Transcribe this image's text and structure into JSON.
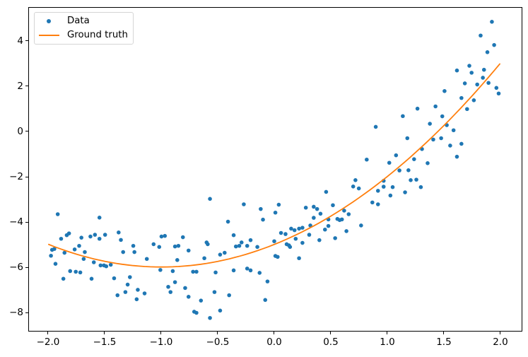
{
  "figure": {
    "background": "#ffffff"
  },
  "chart_data": {
    "type": "scatter",
    "title": "",
    "xlabel": "",
    "ylabel": "",
    "grid": false,
    "axes_color": "#000000",
    "xlim": [
      -2.175,
      2.194
    ],
    "ylim": [
      -8.83,
      5.49
    ],
    "x_ticks": [
      -2.0,
      -1.5,
      -1.0,
      -0.5,
      0.0,
      0.5,
      1.0,
      1.5,
      2.0
    ],
    "x_tick_labels": [
      "−2.0",
      "−1.5",
      "−1.0",
      "−0.5",
      "0.0",
      "0.5",
      "1.0",
      "1.5",
      "2.0"
    ],
    "y_ticks": [
      -8,
      -6,
      -4,
      -2,
      0,
      2,
      4
    ],
    "y_tick_labels": [
      "−8",
      "−6",
      "−4",
      "−2",
      "0",
      "2",
      "4"
    ],
    "legend": {
      "position": "upper left",
      "entries": [
        {
          "label": "Data",
          "type": "marker",
          "color": "#1f77b4"
        },
        {
          "label": "Ground truth",
          "type": "line",
          "color": "#ff7f0e"
        }
      ]
    },
    "series": [
      {
        "name": "Data",
        "type": "scatter",
        "color": "#1f77b4",
        "marker": "dot",
        "marker_radius": 2.8,
        "points": [
          [
            -1.92,
            -3.66
          ],
          [
            -1.55,
            -3.81
          ],
          [
            -1.89,
            -4.75
          ],
          [
            -1.84,
            -4.59
          ],
          [
            -1.82,
            -4.51
          ],
          [
            -1.71,
            -4.7
          ],
          [
            -1.63,
            -4.65
          ],
          [
            -1.59,
            -4.57
          ],
          [
            -1.55,
            -4.75
          ],
          [
            -1.5,
            -4.57
          ],
          [
            -1.38,
            -4.47
          ],
          [
            -1.36,
            -4.8
          ],
          [
            -1.97,
            -5.24
          ],
          [
            -1.95,
            -5.2
          ],
          [
            -1.98,
            -5.5
          ],
          [
            -1.86,
            -5.37
          ],
          [
            -1.77,
            -5.22
          ],
          [
            -1.73,
            -5.06
          ],
          [
            -1.68,
            -5.34
          ],
          [
            -1.34,
            -5.34
          ],
          [
            -1.25,
            -5.06
          ],
          [
            -1.24,
            -5.34
          ],
          [
            -1.94,
            -5.86
          ],
          [
            -1.69,
            -5.64
          ],
          [
            -1.6,
            -5.79
          ],
          [
            -1.54,
            -5.93
          ],
          [
            -1.51,
            -5.93
          ],
          [
            -1.49,
            -5.97
          ],
          [
            -1.45,
            -5.9
          ],
          [
            -1.81,
            -6.18
          ],
          [
            -1.76,
            -6.21
          ],
          [
            -1.72,
            -6.24
          ],
          [
            -1.87,
            -6.52
          ],
          [
            -1.62,
            -6.52
          ],
          [
            -1.42,
            -6.5
          ],
          [
            -1.28,
            -6.45
          ],
          [
            -1.3,
            -6.78
          ],
          [
            -1.21,
            -7.01
          ],
          [
            -1.15,
            -7.17
          ],
          [
            -1.39,
            -7.25
          ],
          [
            -1.32,
            -7.11
          ],
          [
            -1.22,
            -7.43
          ],
          [
            -1.13,
            -5.64
          ],
          [
            -0.57,
            -2.98
          ],
          [
            -0.27,
            -3.22
          ],
          [
            -0.12,
            -3.43
          ],
          [
            -0.1,
            -3.9
          ],
          [
            -0.41,
            -3.99
          ],
          [
            -0.81,
            -4.68
          ],
          [
            -1.0,
            -4.65
          ],
          [
            -0.97,
            -4.62
          ],
          [
            -0.36,
            -4.59
          ],
          [
            -0.29,
            -4.91
          ],
          [
            -0.21,
            -4.81
          ],
          [
            -0.34,
            -5.09
          ],
          [
            -0.31,
            -5.06
          ],
          [
            -0.24,
            -5.06
          ],
          [
            -0.15,
            -5.11
          ],
          [
            -1.07,
            -4.99
          ],
          [
            -1.02,
            -5.11
          ],
          [
            -0.88,
            -5.09
          ],
          [
            -0.85,
            -5.06
          ],
          [
            -0.76,
            -5.27
          ],
          [
            -0.6,
            -4.91
          ],
          [
            -0.59,
            -4.99
          ],
          [
            -0.48,
            -5.45
          ],
          [
            -0.44,
            -5.37
          ],
          [
            -0.62,
            -5.61
          ],
          [
            -0.86,
            -5.69
          ],
          [
            -1.01,
            -6.13
          ],
          [
            -0.9,
            -6.18
          ],
          [
            -0.72,
            -6.21
          ],
          [
            -0.69,
            -6.21
          ],
          [
            -0.52,
            -6.24
          ],
          [
            -0.36,
            -6.15
          ],
          [
            -0.24,
            -6.07
          ],
          [
            -0.21,
            -6.15
          ],
          [
            -0.13,
            -6.26
          ],
          [
            -0.88,
            -6.67
          ],
          [
            -0.94,
            -6.88
          ],
          [
            -0.92,
            -7.11
          ],
          [
            -0.79,
            -6.93
          ],
          [
            -0.76,
            -7.32
          ],
          [
            -0.53,
            -7.11
          ],
          [
            -0.65,
            -7.49
          ],
          [
            -0.71,
            -7.98
          ],
          [
            -0.69,
            -8.03
          ],
          [
            -0.48,
            -7.93
          ],
          [
            -0.57,
            -8.26
          ],
          [
            -0.4,
            -7.25
          ],
          [
            -0.08,
            -7.46
          ],
          [
            -0.06,
            -6.64
          ],
          [
            0.0,
            -4.86
          ],
          [
            0.72,
            -2.15
          ],
          [
            0.7,
            -2.43
          ],
          [
            0.75,
            -2.52
          ],
          [
            0.97,
            -2.18
          ],
          [
            0.97,
            -2.44
          ],
          [
            0.92,
            -2.62
          ],
          [
            1.05,
            -2.46
          ],
          [
            1.03,
            -2.83
          ],
          [
            0.87,
            -3.14
          ],
          [
            0.92,
            -3.22
          ],
          [
            0.46,
            -2.67
          ],
          [
            0.04,
            -3.24
          ],
          [
            0.01,
            -3.59
          ],
          [
            0.28,
            -3.37
          ],
          [
            0.35,
            -3.33
          ],
          [
            0.38,
            -3.43
          ],
          [
            0.52,
            -3.26
          ],
          [
            0.62,
            -3.5
          ],
          [
            0.66,
            -3.66
          ],
          [
            0.41,
            -3.64
          ],
          [
            0.35,
            -3.82
          ],
          [
            0.48,
            -3.89
          ],
          [
            0.56,
            -3.87
          ],
          [
            0.58,
            -3.92
          ],
          [
            0.6,
            -3.89
          ],
          [
            0.32,
            -4.16
          ],
          [
            0.45,
            -4.34
          ],
          [
            0.48,
            -4.18
          ],
          [
            0.15,
            -4.3
          ],
          [
            0.18,
            -4.37
          ],
          [
            0.22,
            -4.3
          ],
          [
            0.25,
            -4.26
          ],
          [
            0.06,
            -4.49
          ],
          [
            0.1,
            -4.54
          ],
          [
            0.31,
            -4.57
          ],
          [
            0.64,
            -4.41
          ],
          [
            0.77,
            -4.16
          ],
          [
            0.19,
            -4.75
          ],
          [
            0.4,
            -4.81
          ],
          [
            0.25,
            -4.93
          ],
          [
            0.11,
            -4.99
          ],
          [
            0.13,
            -5.04
          ],
          [
            0.14,
            -5.11
          ],
          [
            0.54,
            -4.72
          ],
          [
            0.01,
            -5.51
          ],
          [
            0.03,
            -5.55
          ],
          [
            0.22,
            -5.61
          ],
          [
            0.9,
            0.21
          ],
          [
            0.82,
            -1.24
          ],
          [
            1.08,
            -1.05
          ],
          [
            1.02,
            -1.38
          ],
          [
            1.11,
            -1.72
          ],
          [
            1.19,
            -1.71
          ],
          [
            1.21,
            -2.15
          ],
          [
            1.26,
            -2.13
          ],
          [
            1.3,
            -2.46
          ],
          [
            1.16,
            -2.69
          ],
          [
            1.93,
            4.87
          ],
          [
            1.83,
            4.26
          ],
          [
            1.95,
            3.84
          ],
          [
            1.89,
            3.52
          ],
          [
            1.86,
            2.74
          ],
          [
            1.73,
            2.92
          ],
          [
            1.62,
            2.71
          ],
          [
            1.75,
            2.61
          ],
          [
            1.85,
            2.39
          ],
          [
            1.69,
            2.14
          ],
          [
            1.9,
            2.16
          ],
          [
            1.8,
            2.09
          ],
          [
            1.51,
            1.8
          ],
          [
            1.97,
            1.94
          ],
          [
            1.99,
            1.69
          ],
          [
            1.66,
            1.49
          ],
          [
            1.77,
            1.39
          ],
          [
            1.27,
            1.02
          ],
          [
            1.43,
            1.12
          ],
          [
            1.71,
            1.0
          ],
          [
            1.14,
            0.69
          ],
          [
            1.49,
            0.68
          ],
          [
            1.38,
            0.35
          ],
          [
            1.53,
            0.29
          ],
          [
            1.59,
            0.06
          ],
          [
            1.18,
            -0.29
          ],
          [
            1.41,
            -0.35
          ],
          [
            1.48,
            -0.29
          ],
          [
            1.56,
            -0.62
          ],
          [
            1.31,
            -0.77
          ],
          [
            1.66,
            -0.54
          ],
          [
            1.62,
            -1.11
          ],
          [
            1.24,
            -1.22
          ],
          [
            1.36,
            -1.4
          ]
        ]
      },
      {
        "name": "Ground truth",
        "type": "line",
        "color": "#ff7f0e",
        "line_width": 1.8,
        "function": "y = x^2 + 2x - 5",
        "coefficients": {
          "a": 1,
          "b": 2,
          "c": -5
        },
        "x_range": [
          -2,
          2
        ]
      }
    ]
  }
}
